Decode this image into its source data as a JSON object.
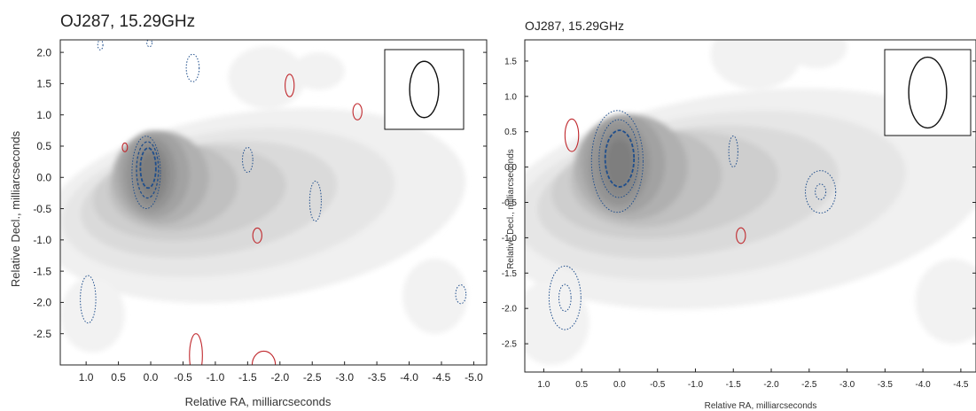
{
  "chart_data": [
    {
      "type": "contour",
      "title": "OJ287, 15.29GHz",
      "xlabel": "Relative RA, milliarcseconds",
      "ylabel": "Relative Decl., milliarcseconds",
      "xlim": [
        1.4,
        -5.2
      ],
      "ylim": [
        -3.0,
        2.2
      ],
      "xticks": [
        "1.0",
        "0.5",
        "0.0",
        "-0.5",
        "-1.0",
        "-1.5",
        "-2.0",
        "-2.5",
        "-3.0",
        "-3.5",
        "-4.0",
        "-4.5",
        "-5.0"
      ],
      "yticks": [
        "2.0",
        "1.5",
        "1.0",
        "0.5",
        "0.0",
        "-0.5",
        "-1.0",
        "-1.5",
        "-2.0",
        "-2.5"
      ],
      "beam": {
        "major_mas": 0.9,
        "minor_mas": 0.45,
        "pa_deg": 0
      },
      "colors": {
        "negative_contour": "#c0282d",
        "positive_contour": "#1f4e8c",
        "intensity": "#808080"
      },
      "contours": [
        {
          "color": "blue",
          "style": "dotted",
          "cx": 0.07,
          "cy": 0.08,
          "rx": 0.22,
          "ry": 0.58
        },
        {
          "color": "blue",
          "style": "dashed",
          "cx": 0.05,
          "cy": 0.12,
          "rx": 0.17,
          "ry": 0.45
        },
        {
          "color": "blue",
          "style": "dashed-heavy",
          "cx": 0.04,
          "cy": 0.15,
          "rx": 0.12,
          "ry": 0.32
        },
        {
          "color": "blue",
          "style": "dotted",
          "cx": -0.65,
          "cy": 1.75,
          "rx": 0.1,
          "ry": 0.22
        },
        {
          "color": "blue",
          "style": "dotted",
          "cx": 0.78,
          "cy": 2.12,
          "rx": 0.04,
          "ry": 0.08
        },
        {
          "color": "blue",
          "style": "dotted",
          "cx": 0.02,
          "cy": 2.15,
          "rx": 0.04,
          "ry": 0.06
        },
        {
          "color": "blue",
          "style": "dotted",
          "cx": -1.5,
          "cy": 0.28,
          "rx": 0.08,
          "ry": 0.2
        },
        {
          "color": "blue",
          "style": "dotted",
          "cx": -2.55,
          "cy": -0.38,
          "rx": 0.09,
          "ry": 0.32
        },
        {
          "color": "blue",
          "style": "dotted",
          "cx": 0.97,
          "cy": -1.95,
          "rx": 0.12,
          "ry": 0.38
        },
        {
          "color": "blue",
          "style": "dotted",
          "cx": -4.8,
          "cy": -1.87,
          "rx": 0.08,
          "ry": 0.15
        },
        {
          "color": "red",
          "style": "solid",
          "cx": 0.4,
          "cy": 0.48,
          "rx": 0.04,
          "ry": 0.07
        },
        {
          "color": "red",
          "style": "solid",
          "cx": -2.15,
          "cy": 1.47,
          "rx": 0.07,
          "ry": 0.18
        },
        {
          "color": "red",
          "style": "solid",
          "cx": -3.2,
          "cy": 1.05,
          "rx": 0.07,
          "ry": 0.13
        },
        {
          "color": "red",
          "style": "solid",
          "cx": -1.65,
          "cy": -0.93,
          "rx": 0.07,
          "ry": 0.12
        },
        {
          "color": "red",
          "style": "solid",
          "cx": -0.7,
          "cy": -2.85,
          "rx": 0.1,
          "ry": 0.35
        },
        {
          "color": "red",
          "style": "solid",
          "cx": -1.75,
          "cy": -3.0,
          "rx": 0.18,
          "ry": 0.22
        }
      ]
    },
    {
      "type": "contour",
      "title": "OJ287, 15.29GHz",
      "xlabel": "Relative RA, milliarcseconds",
      "ylabel": "Relative Decl., milliarcseconds",
      "xlim": [
        1.25,
        -4.7
      ],
      "ylim": [
        -2.9,
        1.8
      ],
      "xticks": [
        "1.0",
        "0.5",
        "0.0",
        "-0.5",
        "-1.0",
        "-1.5",
        "-2.0",
        "-2.5",
        "-3.0",
        "-3.5",
        "-4.0",
        "-4.5"
      ],
      "yticks": [
        "1.5",
        "1.0",
        "0.5",
        "0.0",
        "-0.5",
        "-1.0",
        "-1.5",
        "-2.0",
        "-2.5"
      ],
      "beam": {
        "major_mas": 1.0,
        "minor_mas": 0.5,
        "pa_deg": 0
      },
      "colors": {
        "negative_contour": "#c0282d",
        "positive_contour": "#1f4e8c",
        "intensity": "#808080"
      },
      "contours": [
        {
          "color": "blue",
          "style": "dotted",
          "cx": 0.03,
          "cy": 0.08,
          "rx": 0.34,
          "ry": 0.72
        },
        {
          "color": "blue",
          "style": "dotted",
          "cx": 0.01,
          "cy": 0.12,
          "rx": 0.26,
          "ry": 0.55
        },
        {
          "color": "blue",
          "style": "dashed-heavy",
          "cx": 0.0,
          "cy": 0.12,
          "rx": 0.19,
          "ry": 0.4
        },
        {
          "color": "blue",
          "style": "dotted",
          "cx": -1.5,
          "cy": 0.22,
          "rx": 0.06,
          "ry": 0.22
        },
        {
          "color": "blue",
          "style": "dotted",
          "cx": -2.65,
          "cy": -0.35,
          "rx": 0.2,
          "ry": 0.3
        },
        {
          "color": "blue",
          "style": "dotted",
          "cx": -2.65,
          "cy": -0.35,
          "rx": 0.07,
          "ry": 0.11
        },
        {
          "color": "blue",
          "style": "dotted",
          "cx": 0.72,
          "cy": -1.85,
          "rx": 0.21,
          "ry": 0.45
        },
        {
          "color": "blue",
          "style": "dotted",
          "cx": 0.72,
          "cy": -1.85,
          "rx": 0.08,
          "ry": 0.19
        },
        {
          "color": "red",
          "style": "solid",
          "cx": 0.63,
          "cy": 0.45,
          "rx": 0.09,
          "ry": 0.23
        },
        {
          "color": "red",
          "style": "solid",
          "cx": -1.6,
          "cy": -0.97,
          "rx": 0.06,
          "ry": 0.11
        }
      ]
    }
  ]
}
